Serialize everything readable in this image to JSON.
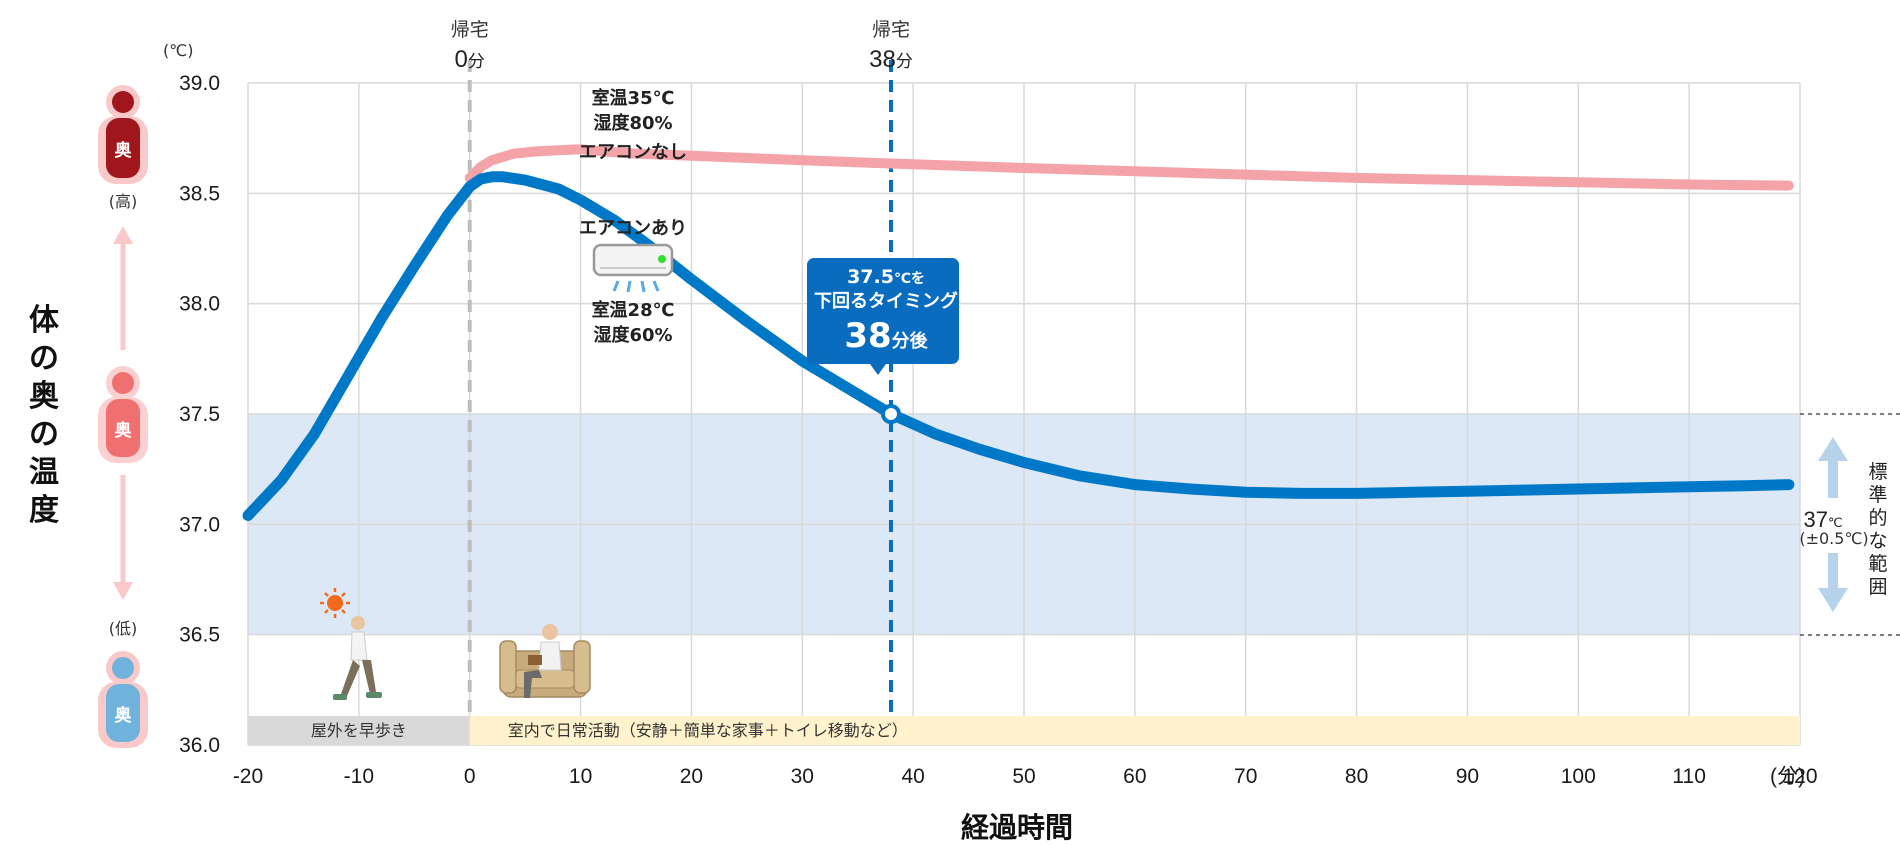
{
  "chart_data": {
    "type": "line",
    "ylabel": "体の奥の温度",
    "xlabel": "経過時間",
    "y_unit": "(℃)",
    "x_unit": "(分)",
    "xlim": [
      -20,
      120
    ],
    "ylim": [
      36.0,
      39.0
    ],
    "x_ticks": [
      -20,
      -10,
      0,
      10,
      20,
      30,
      40,
      50,
      60,
      70,
      80,
      90,
      100,
      110,
      120
    ],
    "y_ticks": [
      "36.0",
      "36.5",
      "37.0",
      "37.5",
      "38.0",
      "38.5",
      "39.0"
    ],
    "grid": true,
    "series": [
      {
        "name": "エアコンなし",
        "color": "#f4a3a8",
        "x": [
          0,
          1,
          2,
          4,
          6,
          8,
          10,
          12,
          15,
          20,
          30,
          38,
          50,
          60,
          70,
          80,
          90,
          100,
          110,
          119
        ],
        "y": [
          38.57,
          38.62,
          38.65,
          38.68,
          38.69,
          38.695,
          38.7,
          38.69,
          38.68,
          38.67,
          38.65,
          38.635,
          38.615,
          38.6,
          38.585,
          38.57,
          38.56,
          38.55,
          38.54,
          38.535
        ]
      },
      {
        "name": "エアコンあり",
        "color": "#0078c8",
        "x": [
          -20,
          -17,
          -14,
          -11,
          -8,
          -5,
          -2,
          0,
          1,
          2,
          3,
          5,
          8,
          10,
          13,
          16,
          20,
          25,
          30,
          35,
          38,
          42,
          46,
          50,
          55,
          60,
          65,
          70,
          75,
          80,
          85,
          90,
          95,
          100,
          105,
          110,
          115,
          119
        ],
        "y": [
          37.04,
          37.2,
          37.41,
          37.67,
          37.93,
          38.17,
          38.4,
          38.53,
          38.565,
          38.575,
          38.575,
          38.56,
          38.52,
          38.47,
          38.38,
          38.27,
          38.11,
          37.92,
          37.74,
          37.59,
          37.5,
          37.41,
          37.34,
          37.28,
          37.22,
          37.18,
          37.16,
          37.145,
          37.14,
          37.14,
          37.145,
          37.15,
          37.155,
          37.16,
          37.165,
          37.17,
          37.175,
          37.18
        ]
      }
    ],
    "standard_band": {
      "y": [
        36.5,
        37.5
      ],
      "color": "#dce8f5"
    },
    "markers": [
      {
        "x": 0,
        "top": "帰宅",
        "bottom": "0",
        "unit": "分",
        "style": "gray-dashed"
      },
      {
        "x": 38,
        "top": "帰宅",
        "bottom": "38",
        "unit": "分",
        "style": "blue-dashed"
      }
    ],
    "crossing_point": {
      "x": 38,
      "y": 37.5
    }
  },
  "annotations": {
    "no_ac_condition_1": "室温35℃",
    "no_ac_condition_2": "湿度80%",
    "no_ac_label": "エアコンなし",
    "ac_label": "エアコンあり",
    "ac_condition_1": "室温28℃",
    "ac_condition_2": "湿度60%",
    "callout_line1": "37.5",
    "callout_line1_unit": "℃を",
    "callout_line2": "下回るタイミング",
    "callout_big": "38",
    "callout_big_unit": "分後",
    "band_value": "37",
    "band_value_unit": "℃",
    "band_tolerance": "(±0.5℃)",
    "band_label": "標準的な範囲",
    "high_label": "(高)",
    "low_label": "(低)",
    "figure_glyph": "奥"
  },
  "activity_bars": [
    {
      "label": "屋外を早歩き",
      "x": [
        -20,
        0
      ],
      "color": "#d9d9d9"
    },
    {
      "label": "室内で日常活動（安静＋簡単な家事＋トイレ移動など）",
      "x": [
        0,
        120
      ],
      "color": "#fff2cc"
    }
  ],
  "colors": {
    "no_ac_line": "#f4a3a8",
    "ac_line": "#0078c8",
    "band": "#dce8f5",
    "callout_bg": "#0a6cbf",
    "figure_high": "#a0161d",
    "figure_mid": "#f07070",
    "figure_low": "#6fb3dd"
  }
}
